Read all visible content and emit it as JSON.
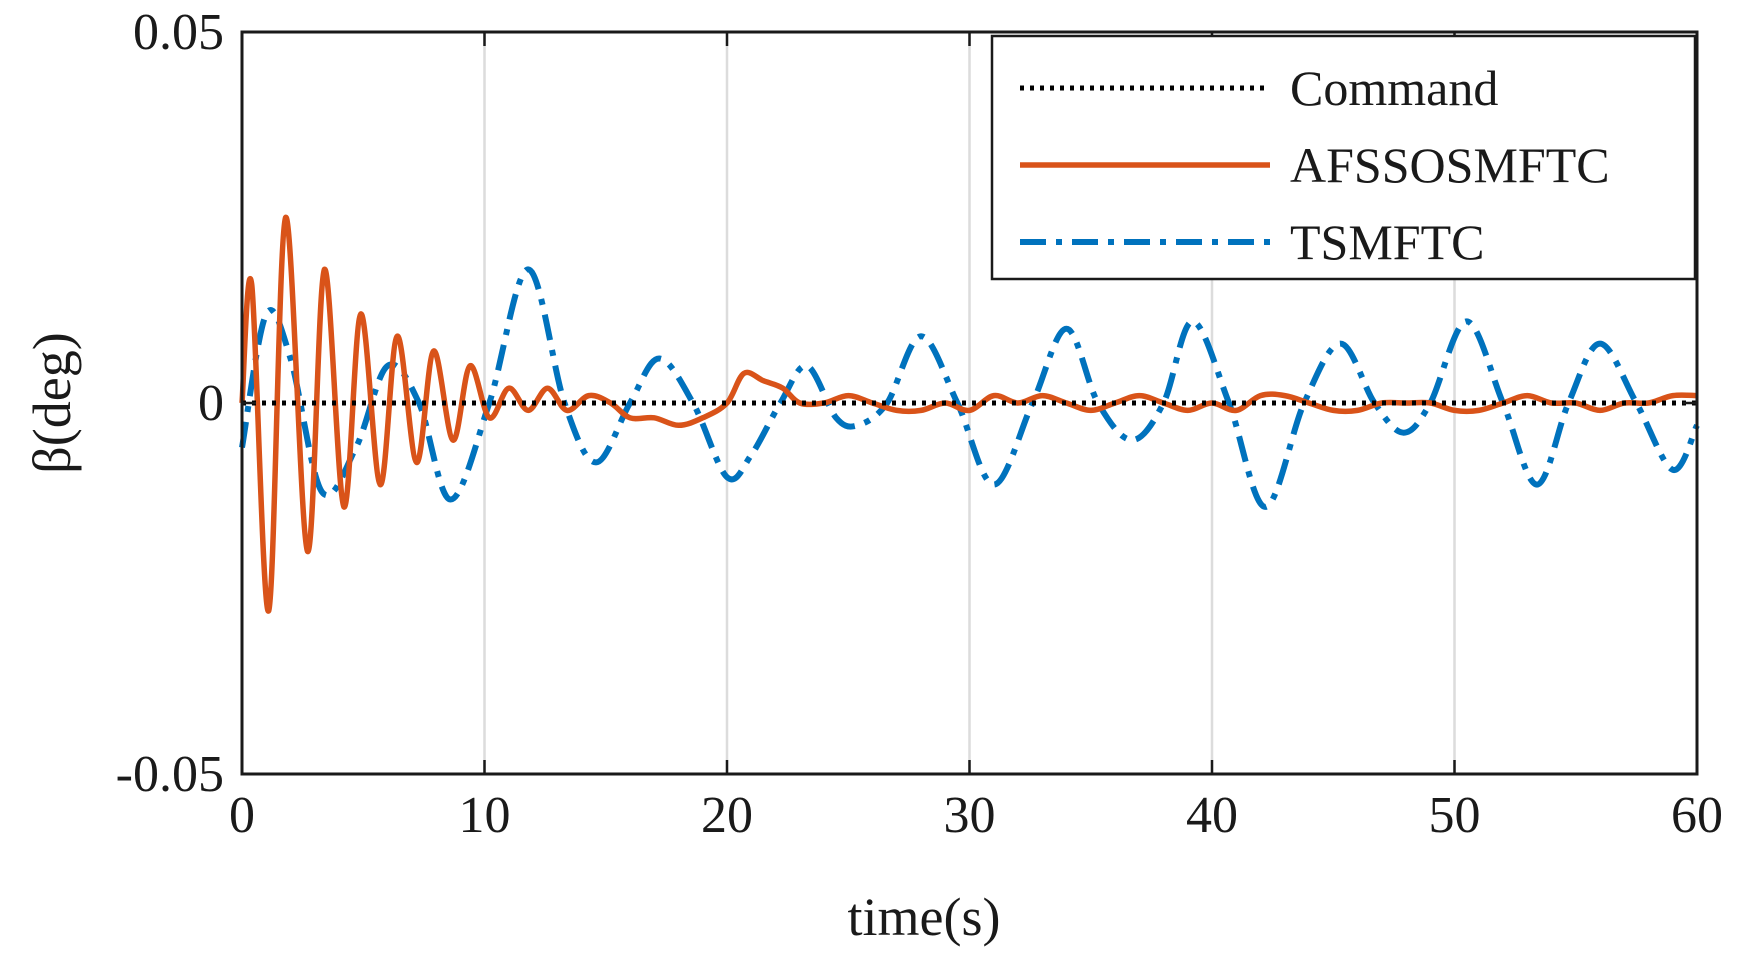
{
  "chart_data": {
    "type": "line",
    "title": "",
    "xlabel": "time(s)",
    "ylabel": "β(deg)",
    "xlim": [
      0,
      60
    ],
    "ylim": [
      -0.05,
      0.05
    ],
    "xticks": [
      0,
      10,
      20,
      30,
      40,
      50,
      60
    ],
    "xtick_labels": [
      "0",
      "10",
      "20",
      "30",
      "40",
      "50",
      "60"
    ],
    "yticks": [
      -0.05,
      0,
      0.05
    ],
    "ytick_labels": [
      "-0.05",
      "0",
      "0.05"
    ],
    "grid": "vertical",
    "legend_position": "top-right",
    "series": [
      {
        "name": "Command",
        "color": "#000000",
        "style": "dotted",
        "x": [
          0,
          60
        ],
        "y": [
          0,
          0
        ]
      },
      {
        "name": "AFSSOSMFTC",
        "color": "#D95319",
        "style": "solid",
        "x": [
          0,
          0.4,
          1.1,
          1.8,
          2.7,
          3.4,
          4.2,
          4.9,
          5.7,
          6.4,
          7.2,
          7.9,
          8.7,
          9.4,
          10.2,
          11.0,
          11.8,
          12.6,
          13.4,
          14.3,
          15.2,
          16.0,
          17.0,
          18.0,
          19.0,
          20.0,
          20.7,
          21.5,
          22.3,
          23.0,
          24.0,
          25.0,
          26.0,
          27.0,
          28.0,
          29.0,
          30.0,
          31.0,
          32.0,
          33.0,
          34.0,
          35.0,
          36.0,
          37.0,
          38.0,
          39.0,
          40.0,
          41.0,
          42.0,
          43.0,
          44.0,
          45.0,
          46.0,
          47.0,
          48.0,
          49.0,
          50.0,
          51.0,
          52.0,
          53.0,
          54.0,
          55.0,
          56.0,
          57.0,
          58.0,
          59.0,
          60.0
        ],
        "y": [
          0,
          0.016,
          -0.028,
          0.025,
          -0.02,
          0.018,
          -0.014,
          0.012,
          -0.011,
          0.009,
          -0.008,
          0.007,
          -0.005,
          0.005,
          -0.002,
          0.002,
          -0.001,
          0.002,
          -0.001,
          0.001,
          0.0,
          -0.002,
          -0.002,
          -0.003,
          -0.002,
          0.0,
          0.004,
          0.003,
          0.002,
          0.0,
          0.0,
          0.001,
          0.0,
          -0.001,
          -0.001,
          0.0,
          -0.001,
          0.001,
          0.0,
          0.001,
          0.0,
          -0.001,
          0.0,
          0.001,
          0.0,
          -0.001,
          0.0,
          -0.001,
          0.001,
          0.001,
          0.0,
          -0.001,
          -0.001,
          0.0,
          0.0,
          0.0,
          -0.001,
          -0.001,
          0.0,
          0.001,
          0.0,
          0.0,
          -0.001,
          0.0,
          0.0,
          0.001,
          0.001
        ]
      },
      {
        "name": "TSMFTC",
        "color": "#0072BD",
        "style": "dashdot",
        "x": [
          0,
          1.0,
          2.0,
          3.3,
          4.7,
          6.0,
          7.3,
          8.6,
          10.2,
          11.8,
          13.3,
          14.6,
          16.0,
          17.2,
          18.6,
          20.0,
          21.0,
          22.2,
          23.3,
          24.5,
          25.4,
          26.6,
          28.0,
          29.5,
          31.0,
          32.6,
          34.0,
          35.3,
          36.7,
          38.0,
          39.2,
          40.7,
          42.2,
          43.8,
          45.3,
          46.7,
          47.9,
          49.0,
          50.5,
          52.0,
          53.4,
          54.7,
          56.0,
          57.5,
          59.0,
          60.0
        ],
        "y": [
          -0.006,
          0.012,
          0.006,
          -0.012,
          -0.006,
          0.005,
          0.0,
          -0.013,
          0.0,
          0.018,
          0.0,
          -0.008,
          0.0,
          0.006,
          0.0,
          -0.01,
          -0.007,
          0.0,
          0.005,
          -0.002,
          -0.003,
          0.0,
          0.009,
          0.0,
          -0.011,
          0.0,
          0.01,
          0.0,
          -0.005,
          0.0,
          0.011,
          0.0,
          -0.014,
          0.0,
          0.008,
          0.0,
          -0.004,
          0.0,
          0.011,
          0.0,
          -0.011,
          0.0,
          0.008,
          0.0,
          -0.009,
          -0.003
        ]
      }
    ]
  }
}
